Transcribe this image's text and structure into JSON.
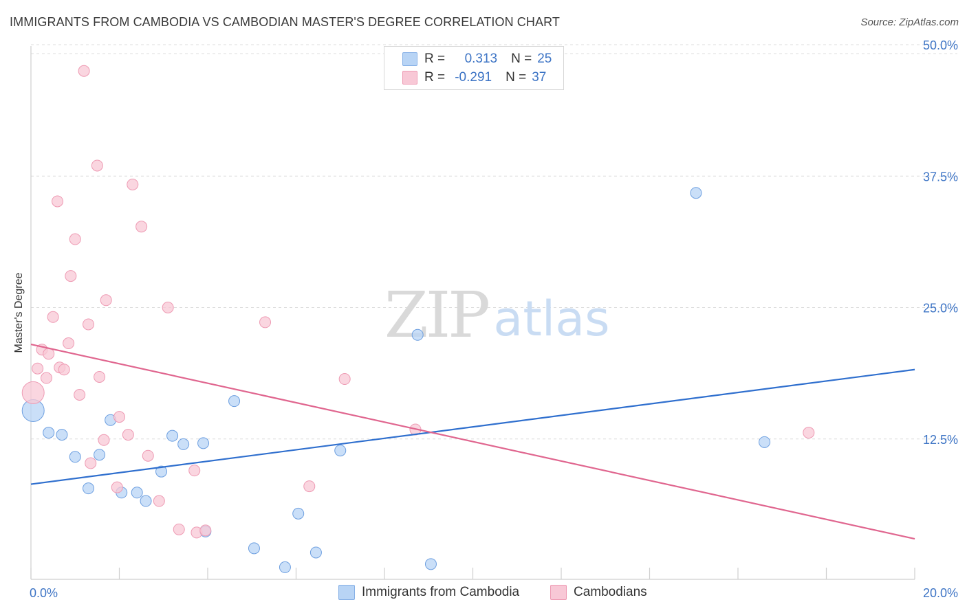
{
  "header": {
    "title": "IMMIGRANTS FROM CAMBODIA VS CAMBODIAN MASTER'S DEGREE CORRELATION CHART",
    "source": "Source: ZipAtlas.com"
  },
  "watermark": {
    "zip": "ZIP",
    "atlas": "atlas"
  },
  "legend": {
    "rows": [
      {
        "r_label": "R =",
        "r_value": "0.313",
        "n_label": "N =",
        "n_value": "25",
        "color": "#a9c8ef"
      },
      {
        "r_label": "R =",
        "r_value": "-0.291",
        "n_label": "N =",
        "n_value": "37",
        "color": "#f5b7c9"
      }
    ]
  },
  "bottom_legend": {
    "items": [
      {
        "label": "Immigrants from Cambodia",
        "color": "#b8d4f5"
      },
      {
        "label": "Cambodians",
        "color": "#f8c8d6"
      }
    ]
  },
  "chart_data": {
    "type": "scatter",
    "title": "IMMIGRANTS FROM CAMBODIA VS CAMBODIAN MASTER'S DEGREE CORRELATION CHART",
    "xlabel": "",
    "ylabel": "Master's Degree",
    "xlim": [
      0,
      20
    ],
    "ylim": [
      0,
      50
    ],
    "x_tick_labels": [
      "0.0%",
      "20.0%"
    ],
    "y_tick_labels": [
      "12.5%",
      "25.0%",
      "37.5%",
      "50.0%"
    ],
    "y_ticks": [
      12.5,
      25,
      37.5,
      50
    ],
    "grid": true,
    "legend_position": "top-center",
    "series": [
      {
        "name": "Immigrants from Cambodia",
        "color": "#6d9fe0",
        "fill": "#b8d4f5",
        "line_color": "#2f6fce",
        "trend": {
          "x": [
            0,
            20
          ],
          "y": [
            8.2,
            19.1
          ]
        },
        "points": [
          {
            "x": 0.05,
            "y": 15.2,
            "big": true
          },
          {
            "x": 0.4,
            "y": 13.1
          },
          {
            "x": 0.7,
            "y": 12.9
          },
          {
            "x": 1.0,
            "y": 10.8
          },
          {
            "x": 1.3,
            "y": 7.8
          },
          {
            "x": 1.55,
            "y": 11.0
          },
          {
            "x": 1.8,
            "y": 14.3
          },
          {
            "x": 2.05,
            "y": 7.4
          },
          {
            "x": 2.4,
            "y": 7.4
          },
          {
            "x": 2.6,
            "y": 6.6
          },
          {
            "x": 2.95,
            "y": 9.4
          },
          {
            "x": 3.2,
            "y": 12.8
          },
          {
            "x": 3.45,
            "y": 12.0
          },
          {
            "x": 3.9,
            "y": 12.1
          },
          {
            "x": 3.95,
            "y": 3.7
          },
          {
            "x": 4.6,
            "y": 16.1
          },
          {
            "x": 5.05,
            "y": 2.1
          },
          {
            "x": 5.75,
            "y": 0.3
          },
          {
            "x": 6.05,
            "y": 5.4
          },
          {
            "x": 6.45,
            "y": 1.7
          },
          {
            "x": 7.0,
            "y": 11.4
          },
          {
            "x": 8.75,
            "y": 22.4
          },
          {
            "x": 9.05,
            "y": 0.6
          },
          {
            "x": 15.05,
            "y": 35.9
          },
          {
            "x": 16.6,
            "y": 12.2
          }
        ]
      },
      {
        "name": "Cambodians",
        "color": "#ee9ab3",
        "fill": "#f8c8d6",
        "line_color": "#e0668f",
        "trend": {
          "x": [
            0,
            20
          ],
          "y": [
            21.5,
            3.0
          ]
        },
        "points": [
          {
            "x": 0.05,
            "y": 16.9,
            "big": true
          },
          {
            "x": 0.15,
            "y": 19.2
          },
          {
            "x": 0.25,
            "y": 21.0
          },
          {
            "x": 0.35,
            "y": 18.3
          },
          {
            "x": 0.4,
            "y": 20.6
          },
          {
            "x": 0.5,
            "y": 24.1
          },
          {
            "x": 0.6,
            "y": 35.1
          },
          {
            "x": 0.65,
            "y": 19.3
          },
          {
            "x": 0.75,
            "y": 19.1
          },
          {
            "x": 0.85,
            "y": 21.6
          },
          {
            "x": 0.9,
            "y": 28.0
          },
          {
            "x": 1.0,
            "y": 31.5
          },
          {
            "x": 1.1,
            "y": 16.7
          },
          {
            "x": 1.2,
            "y": 47.5
          },
          {
            "x": 1.3,
            "y": 23.4
          },
          {
            "x": 1.35,
            "y": 10.2
          },
          {
            "x": 1.5,
            "y": 38.5
          },
          {
            "x": 1.55,
            "y": 18.4
          },
          {
            "x": 1.65,
            "y": 12.4
          },
          {
            "x": 1.7,
            "y": 25.7
          },
          {
            "x": 1.95,
            "y": 7.9
          },
          {
            "x": 2.0,
            "y": 14.6
          },
          {
            "x": 2.2,
            "y": 12.9
          },
          {
            "x": 2.3,
            "y": 36.7
          },
          {
            "x": 2.5,
            "y": 32.7
          },
          {
            "x": 2.65,
            "y": 10.9
          },
          {
            "x": 2.9,
            "y": 6.6
          },
          {
            "x": 3.1,
            "y": 25.0
          },
          {
            "x": 3.35,
            "y": 3.9
          },
          {
            "x": 3.7,
            "y": 9.5
          },
          {
            "x": 3.75,
            "y": 3.6
          },
          {
            "x": 3.95,
            "y": 3.8
          },
          {
            "x": 5.3,
            "y": 23.6
          },
          {
            "x": 6.3,
            "y": 8.0
          },
          {
            "x": 7.1,
            "y": 18.2
          },
          {
            "x": 8.7,
            "y": 13.4
          },
          {
            "x": 17.6,
            "y": 13.1
          }
        ]
      }
    ]
  }
}
